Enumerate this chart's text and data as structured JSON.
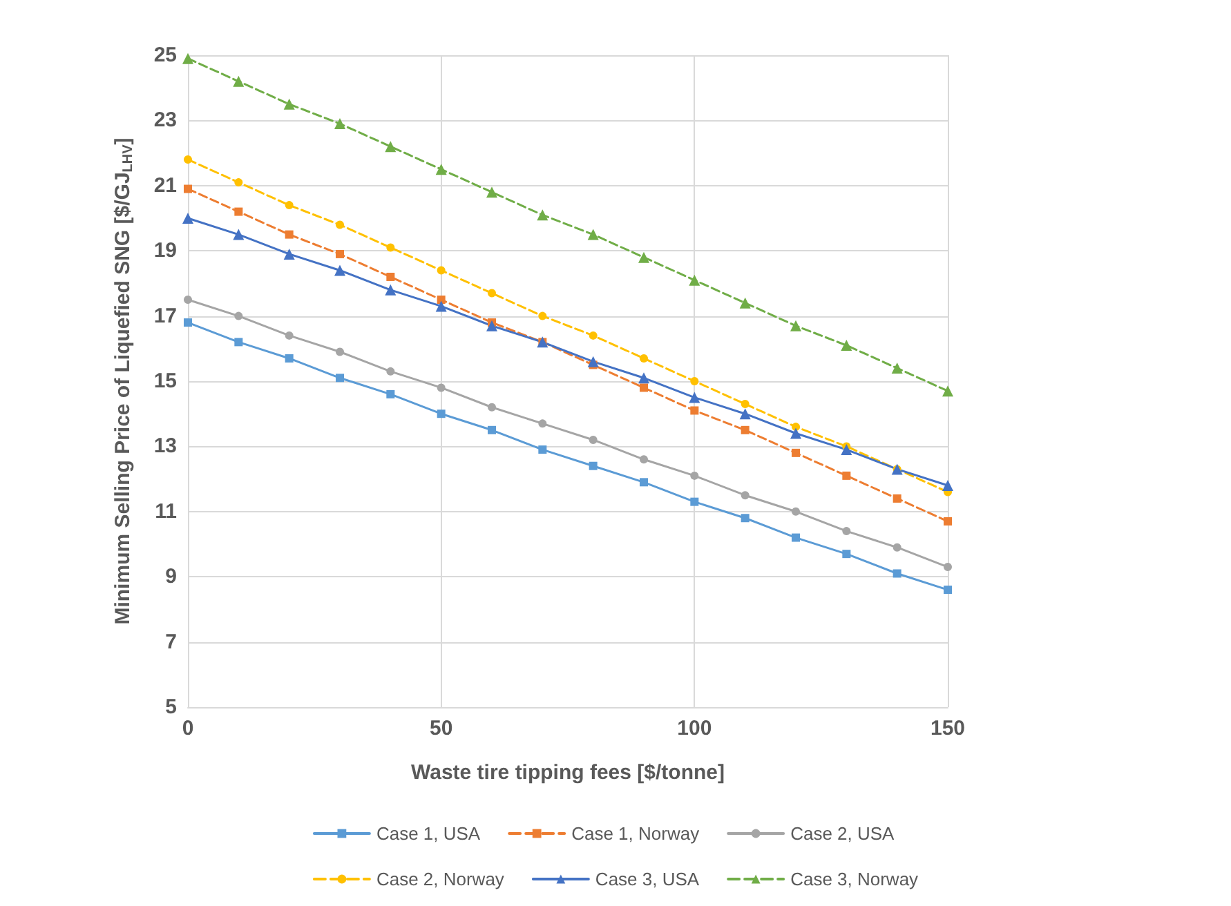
{
  "chart_data": {
    "type": "line",
    "xlabel": "Waste tire tipping fees [$/tonne]",
    "ylabel": "Minimum Selling Price of Liquefied SNG [$/GJ$_{LHV}$]",
    "x": [
      0,
      10,
      20,
      30,
      40,
      50,
      60,
      70,
      80,
      90,
      100,
      110,
      120,
      130,
      140,
      150
    ],
    "xlim": [
      0,
      150
    ],
    "xticks": [
      0,
      50,
      100,
      150
    ],
    "ylim": [
      5,
      25
    ],
    "yticks": [
      5,
      7,
      9,
      11,
      13,
      15,
      17,
      19,
      21,
      23,
      25
    ],
    "grid": true,
    "legend": "bottom",
    "series": [
      {
        "name": "Case 1, USA",
        "color": "#5b9bd5",
        "marker": "square",
        "line_style": "solid",
        "values": [
          16.8,
          16.2,
          15.7,
          15.1,
          14.6,
          14.0,
          13.5,
          12.9,
          12.4,
          11.9,
          11.3,
          10.8,
          10.2,
          9.7,
          9.1,
          8.6
        ]
      },
      {
        "name": "Case 1, Norway",
        "color": "#ed7d31",
        "marker": "square",
        "line_style": "dashed",
        "values": [
          20.9,
          20.2,
          19.5,
          18.9,
          18.2,
          17.5,
          16.8,
          16.2,
          15.5,
          14.8,
          14.1,
          13.5,
          12.8,
          12.1,
          11.4,
          10.7
        ]
      },
      {
        "name": "Case 2, USA",
        "color": "#a5a5a5",
        "marker": "circle",
        "line_style": "solid",
        "values": [
          17.5,
          17.0,
          16.4,
          15.9,
          15.3,
          14.8,
          14.2,
          13.7,
          13.2,
          12.6,
          12.1,
          11.5,
          11.0,
          10.4,
          9.9,
          9.3
        ]
      },
      {
        "name": "Case 2, Norway",
        "color": "#ffc000",
        "marker": "circle",
        "line_style": "dashed",
        "values": [
          21.8,
          21.1,
          20.4,
          19.8,
          19.1,
          18.4,
          17.7,
          17.0,
          16.4,
          15.7,
          15.0,
          14.3,
          13.6,
          13.0,
          12.3,
          11.6
        ]
      },
      {
        "name": "Case 3, USA",
        "color": "#4472c4",
        "marker": "triangle",
        "line_style": "solid",
        "values": [
          20.0,
          19.5,
          18.9,
          18.4,
          17.8,
          17.3,
          16.7,
          16.2,
          15.6,
          15.1,
          14.5,
          14.0,
          13.4,
          12.9,
          12.3,
          11.8
        ]
      },
      {
        "name": "Case 3, Norway",
        "color": "#70ad47",
        "marker": "triangle",
        "line_style": "dashed",
        "values": [
          24.9,
          24.2,
          23.5,
          22.9,
          22.2,
          21.5,
          20.8,
          20.1,
          19.5,
          18.8,
          18.1,
          17.4,
          16.7,
          16.1,
          15.4,
          14.7
        ]
      }
    ]
  }
}
